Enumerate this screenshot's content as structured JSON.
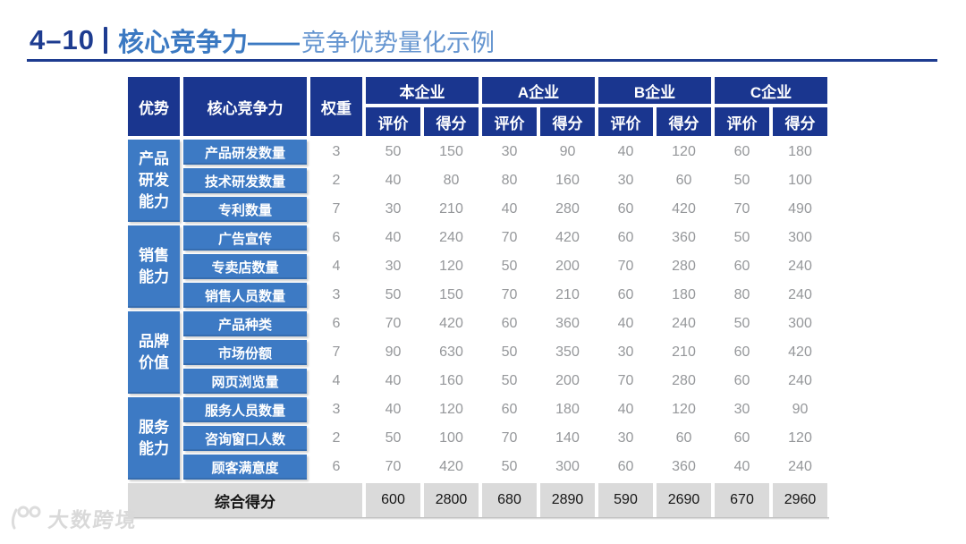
{
  "title": {
    "number": "4–10",
    "main": "核心竞争力——",
    "sub": "竞争优势量化示例"
  },
  "colors": {
    "header_navy": "#1a368f",
    "label_blue": "#3d7ac4",
    "summary_gray": "#dadada",
    "title_navy": "#1e3c90",
    "title_blue": "#3b79c2",
    "title_light_blue": "#6595d0",
    "data_text_gray": "#95979a"
  },
  "table": {
    "headers": {
      "advantage": "优势",
      "competitiveness": "核心竞争力",
      "weight": "权重",
      "companies": [
        "本企业",
        "A企业",
        "B企业",
        "C企业"
      ],
      "sub": [
        "评价",
        "得分"
      ]
    },
    "groups": [
      {
        "name": "产品研发能力",
        "lines": [
          "产品",
          "研发",
          "能力"
        ],
        "rows": [
          {
            "label": "产品研发数量",
            "weight": 3,
            "values": [
              50,
              150,
              30,
              90,
              40,
              120,
              60,
              180
            ]
          },
          {
            "label": "技术研发数量",
            "weight": 2,
            "values": [
              40,
              80,
              80,
              160,
              30,
              60,
              50,
              100
            ]
          },
          {
            "label": "专利数量",
            "weight": 7,
            "values": [
              30,
              210,
              40,
              280,
              60,
              420,
              70,
              490
            ]
          }
        ]
      },
      {
        "name": "销售能力",
        "lines": [
          "销售",
          "能力"
        ],
        "rows": [
          {
            "label": "广告宣传",
            "weight": 6,
            "values": [
              40,
              240,
              70,
              420,
              60,
              360,
              50,
              300
            ]
          },
          {
            "label": "专卖店数量",
            "weight": 4,
            "values": [
              30,
              120,
              50,
              200,
              70,
              280,
              60,
              240
            ]
          },
          {
            "label": "销售人员数量",
            "weight": 3,
            "values": [
              50,
              150,
              70,
              210,
              60,
              180,
              80,
              240
            ]
          }
        ]
      },
      {
        "name": "品牌价值",
        "lines": [
          "品牌",
          "价值"
        ],
        "rows": [
          {
            "label": "产品种类",
            "weight": 6,
            "values": [
              70,
              420,
              60,
              360,
              40,
              240,
              50,
              300
            ]
          },
          {
            "label": "市场份额",
            "weight": 7,
            "values": [
              90,
              630,
              50,
              350,
              30,
              210,
              60,
              420
            ]
          },
          {
            "label": "网页浏览量",
            "weight": 4,
            "values": [
              40,
              160,
              50,
              200,
              70,
              280,
              60,
              240
            ]
          }
        ]
      },
      {
        "name": "服务能力",
        "lines": [
          "服务",
          "能力"
        ],
        "rows": [
          {
            "label": "服务人员数量",
            "weight": 3,
            "values": [
              40,
              120,
              60,
              180,
              40,
              120,
              30,
              90
            ]
          },
          {
            "label": "咨询窗口人数",
            "weight": 2,
            "values": [
              50,
              100,
              70,
              140,
              30,
              60,
              60,
              120
            ]
          },
          {
            "label": "顾客满意度",
            "weight": 6,
            "values": [
              70,
              420,
              50,
              300,
              60,
              360,
              40,
              240
            ]
          }
        ]
      }
    ],
    "summary": {
      "label": "综合得分",
      "values": [
        600,
        2800,
        680,
        2890,
        590,
        2690,
        670,
        2960
      ]
    }
  },
  "watermark": {
    "text": "大数跨境"
  }
}
